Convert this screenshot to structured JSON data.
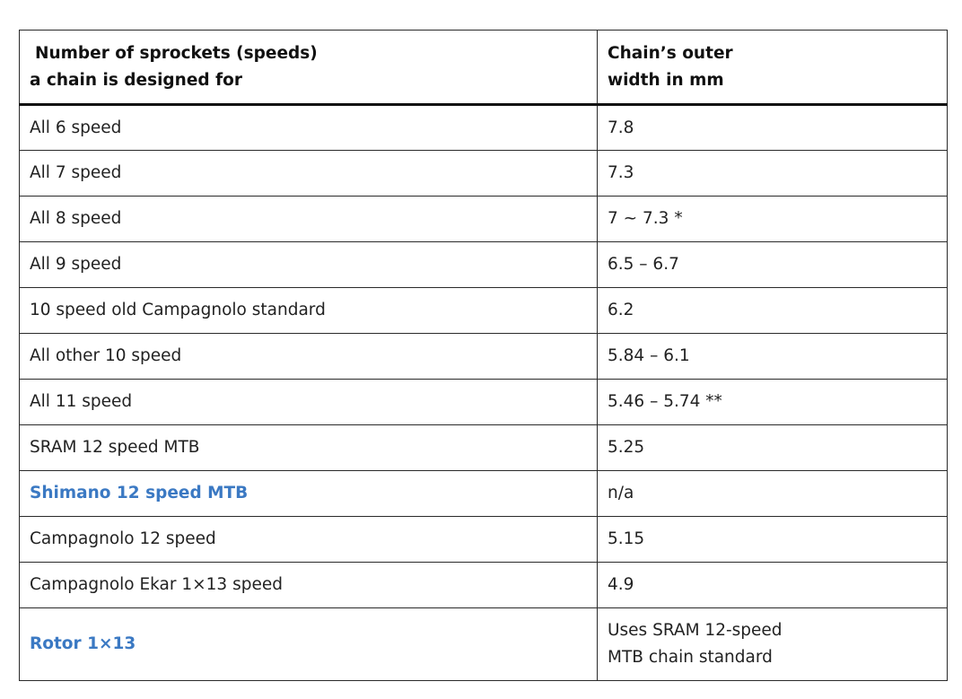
{
  "table": {
    "header": {
      "col1_line1": "Number of sprockets (speeds)",
      "col1_line2": "a chain is designed for",
      "col2_line1": "Chain’s outer",
      "col2_line2": "width in mm"
    },
    "rows": [
      {
        "speeds": "All 6 speed",
        "width": "7.8"
      },
      {
        "speeds": "All 7 speed",
        "width": "7.3"
      },
      {
        "speeds": "All 8 speed",
        "width": "7 ~ 7.3 *"
      },
      {
        "speeds": "All 9 speed",
        "width": "6.5 – 6.7"
      },
      {
        "speeds": "10 speed old Campagnolo standard",
        "width": "6.2"
      },
      {
        "speeds": "All other 10 speed",
        "width": "5.84 – 6.1"
      },
      {
        "speeds": "All 11 speed",
        "width": "5.46 – 5.74 **"
      },
      {
        "speeds": "SRAM 12 speed MTB",
        "width": "5.25"
      },
      {
        "speeds": "Shimano 12 speed MTB",
        "width": "n/a"
      },
      {
        "speeds": "Campagnolo 12 speed",
        "width": "5.15"
      },
      {
        "speeds": "Campagnolo Ekar 1×13 speed",
        "width": "4.9"
      },
      {
        "speeds": "Rotor 1×13",
        "width_line1": "Uses SRAM 12-speed",
        "width_line2": "MTB chain standard"
      }
    ]
  },
  "colors": {
    "link": "#3b79c3",
    "border": "#2a2a2a",
    "text": "#222222"
  }
}
